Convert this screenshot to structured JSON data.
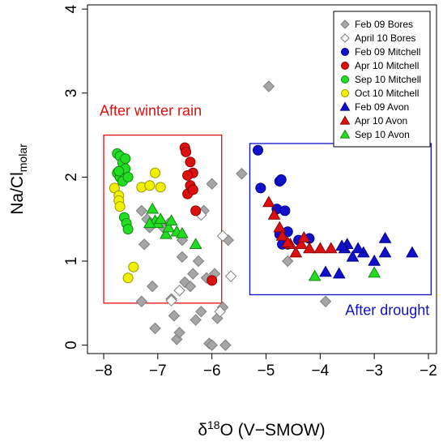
{
  "chart_data": {
    "type": "scatter",
    "title": "",
    "xlabel": {
      "prefix": "δ",
      "sup": "18",
      "main": "O (V−SMOW)"
    },
    "ylabel": {
      "main": "Na/Cl",
      "sub": "molar"
    },
    "xlim": [
      -8.3,
      -1.85
    ],
    "ylim": [
      -0.1,
      4.05
    ],
    "xticks": [
      -8,
      -7,
      -6,
      -5,
      -4,
      -3,
      -2
    ],
    "xtick_labels": [
      "−8",
      "−7",
      "−6",
      "−5",
      "−4",
      "−3",
      "−2"
    ],
    "yticks": [
      0,
      1,
      2,
      3,
      4
    ],
    "ytick_labels": [
      "0",
      "1",
      "2",
      "3",
      "4"
    ],
    "grid": false,
    "legend_position": "top-right",
    "series": [
      {
        "name": "Feb 09 Bores",
        "marker": "diamond",
        "fill": "#a6a6a6",
        "stroke": "#7f7f7f",
        "points": [
          [
            -7.3,
            1.6
          ],
          [
            -7.25,
            1.2
          ],
          [
            -7.2,
            1.5
          ],
          [
            -7.15,
            1.4
          ],
          [
            -7.1,
            0.7
          ],
          [
            -7.05,
            0.2
          ],
          [
            -6.9,
            1.4
          ],
          [
            -6.8,
            1.45
          ],
          [
            -6.75,
            0.55
          ],
          [
            -6.7,
            0.35
          ],
          [
            -6.65,
            0.07
          ],
          [
            -6.6,
            0.15
          ],
          [
            -6.55,
            1.05
          ],
          [
            -6.5,
            0.75
          ],
          [
            -6.4,
            0.7
          ],
          [
            -6.35,
            0.85
          ],
          [
            -6.3,
            0.3
          ],
          [
            -6.25,
            1.0
          ],
          [
            -6.2,
            0.4
          ],
          [
            -6.15,
            1.6
          ],
          [
            -6.1,
            0.8
          ],
          [
            -6.05,
            0.02
          ],
          [
            -6.0,
            1.92
          ],
          [
            -5.95,
            0.85
          ],
          [
            -5.9,
            0.32
          ],
          [
            -5.8,
            0.45
          ],
          [
            -5.7,
            1.25
          ],
          [
            -5.75,
            0.0
          ],
          [
            -5.45,
            2.04
          ],
          [
            -4.95,
            3.08
          ],
          [
            -4.6,
            1.0
          ],
          [
            -3.9,
            0.52
          ],
          [
            -7.3,
            0.52
          ],
          [
            -6.0,
            0.0
          ],
          [
            -6.55,
            1.25
          ]
        ]
      },
      {
        "name": "April 10 Bores",
        "marker": "diamond",
        "fill": "#ffffff",
        "stroke": "#7f7f7f",
        "points": [
          [
            -6.2,
            1.55
          ],
          [
            -6.6,
            0.65
          ],
          [
            -5.85,
            0.4
          ],
          [
            -5.8,
            1.3
          ],
          [
            -6.75,
            0.53
          ],
          [
            -5.65,
            0.82
          ]
        ]
      },
      {
        "name": "Feb 09 Mitchell",
        "marker": "circle",
        "fill": "#1010cc",
        "stroke": "#00008a",
        "points": [
          [
            -5.15,
            2.32
          ],
          [
            -5.1,
            1.87
          ],
          [
            -4.8,
            1.62
          ],
          [
            -4.75,
            1.95
          ],
          [
            -4.72,
            1.97
          ],
          [
            -4.65,
            1.6
          ],
          [
            -4.75,
            1.32
          ],
          [
            -4.7,
            1.2
          ],
          [
            -4.6,
            1.35
          ],
          [
            -4.6,
            1.2
          ],
          [
            -4.4,
            1.25
          ],
          [
            -4.2,
            1.27
          ]
        ]
      },
      {
        "name": "Apr 10 Mitchell",
        "marker": "circle",
        "fill": "#dd1010",
        "stroke": "#8a0000",
        "points": [
          [
            -6.5,
            2.35
          ],
          [
            -6.48,
            2.3
          ],
          [
            -6.45,
            1.8
          ],
          [
            -6.4,
            2.18
          ],
          [
            -6.4,
            1.9
          ],
          [
            -6.35,
            2.05
          ],
          [
            -6.35,
            1.85
          ],
          [
            -6.3,
            1.6
          ],
          [
            -6.45,
            2.02
          ],
          [
            -6.0,
            0.77
          ]
        ]
      },
      {
        "name": "Sep 10 Mitchell",
        "marker": "circle",
        "fill": "#22dd22",
        "stroke": "#118811",
        "points": [
          [
            -7.75,
            2.28
          ],
          [
            -7.7,
            2.25
          ],
          [
            -7.65,
            2.17
          ],
          [
            -7.6,
            2.1
          ],
          [
            -7.75,
            2.05
          ],
          [
            -7.7,
            2.0
          ],
          [
            -7.65,
            1.95
          ],
          [
            -7.6,
            2.22
          ],
          [
            -7.55,
            2.0
          ],
          [
            -7.62,
            1.52
          ],
          [
            -7.58,
            1.45
          ],
          [
            -7.55,
            1.38
          ],
          [
            -7.72,
            2.07
          ]
        ]
      },
      {
        "name": "Oct 10 Mitchell",
        "marker": "circle",
        "fill": "#f0f000",
        "stroke": "#999900",
        "points": [
          [
            -7.8,
            1.87
          ],
          [
            -7.72,
            1.78
          ],
          [
            -7.72,
            1.72
          ],
          [
            -7.7,
            1.65
          ],
          [
            -7.3,
            1.88
          ],
          [
            -7.15,
            1.9
          ],
          [
            -7.05,
            2.05
          ],
          [
            -6.95,
            1.88
          ],
          [
            -7.45,
            0.93
          ],
          [
            -7.55,
            0.8
          ]
        ]
      },
      {
        "name": "Feb 09 Avon",
        "marker": "triangle",
        "fill": "#1010cc",
        "stroke": "#00008a",
        "points": [
          [
            -3.9,
            0.87
          ],
          [
            -3.65,
            0.85
          ],
          [
            -3.5,
            1.2
          ],
          [
            -3.55,
            1.15
          ],
          [
            -3.4,
            1.05
          ],
          [
            -3.2,
            1.1
          ],
          [
            -3.0,
            1.0
          ],
          [
            -2.8,
            1.1
          ],
          [
            -2.8,
            1.27
          ],
          [
            -2.3,
            1.1
          ],
          [
            -3.6,
            1.18
          ],
          [
            -3.3,
            1.15
          ]
        ]
      },
      {
        "name": "Apr 10 Avon",
        "marker": "triangle",
        "fill": "#dd1010",
        "stroke": "#8a0000",
        "points": [
          [
            -4.95,
            1.7
          ],
          [
            -4.85,
            1.55
          ],
          [
            -4.75,
            1.4
          ],
          [
            -4.7,
            1.3
          ],
          [
            -4.55,
            1.2
          ],
          [
            -4.45,
            1.1
          ],
          [
            -4.35,
            1.2
          ],
          [
            -4.3,
            1.28
          ],
          [
            -4.2,
            1.15
          ],
          [
            -4.0,
            1.15
          ],
          [
            -3.8,
            1.15
          ],
          [
            -4.6,
            1.22
          ]
        ]
      },
      {
        "name": "Sep 10 Avon",
        "marker": "triangle",
        "fill": "#22dd22",
        "stroke": "#118811",
        "points": [
          [
            -7.1,
            1.62
          ],
          [
            -7.05,
            1.48
          ],
          [
            -7.0,
            1.45
          ],
          [
            -6.95,
            1.5
          ],
          [
            -6.85,
            1.32
          ],
          [
            -6.8,
            1.4
          ],
          [
            -6.75,
            1.48
          ],
          [
            -6.65,
            1.35
          ],
          [
            -6.55,
            1.33
          ],
          [
            -6.3,
            1.2
          ],
          [
            -7.15,
            1.45
          ],
          [
            -4.1,
            0.82
          ],
          [
            -3.0,
            0.86
          ]
        ]
      }
    ],
    "annotations": [
      {
        "text": "After winter rain",
        "color": "#e01010",
        "box": {
          "x0": -8.0,
          "x1": -5.82,
          "y0": 0.5,
          "y1": 2.5
        }
      },
      {
        "text": "After drought",
        "color": "#1010cc",
        "box": {
          "x0": -5.3,
          "x1": -1.95,
          "y0": 0.6,
          "y1": 2.4
        }
      }
    ]
  }
}
